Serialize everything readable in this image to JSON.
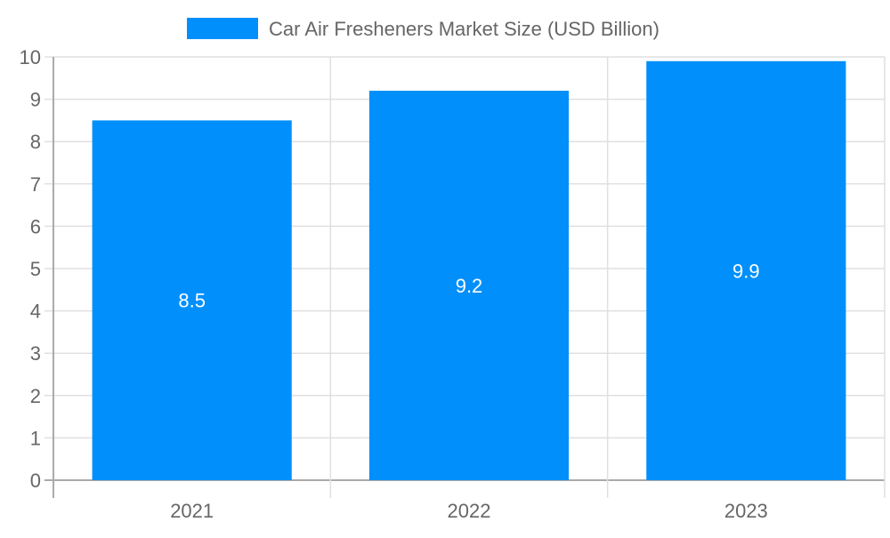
{
  "chart_data": {
    "type": "bar",
    "title": "",
    "xlabel": "",
    "ylabel": "",
    "categories": [
      "2021",
      "2022",
      "2023"
    ],
    "series": [
      {
        "name": "Car Air Fresheners Market Size (USD Billion)",
        "values": [
          8.5,
          9.2,
          9.9
        ],
        "color": "#008ffb"
      }
    ],
    "data_labels": [
      "8.5",
      "9.2",
      "9.9"
    ],
    "ylim": [
      0,
      10
    ],
    "yticks": [
      "0",
      "1",
      "2",
      "3",
      "4",
      "5",
      "6",
      "7",
      "8",
      "9",
      "10"
    ],
    "grid": true,
    "legend": "top-center"
  }
}
